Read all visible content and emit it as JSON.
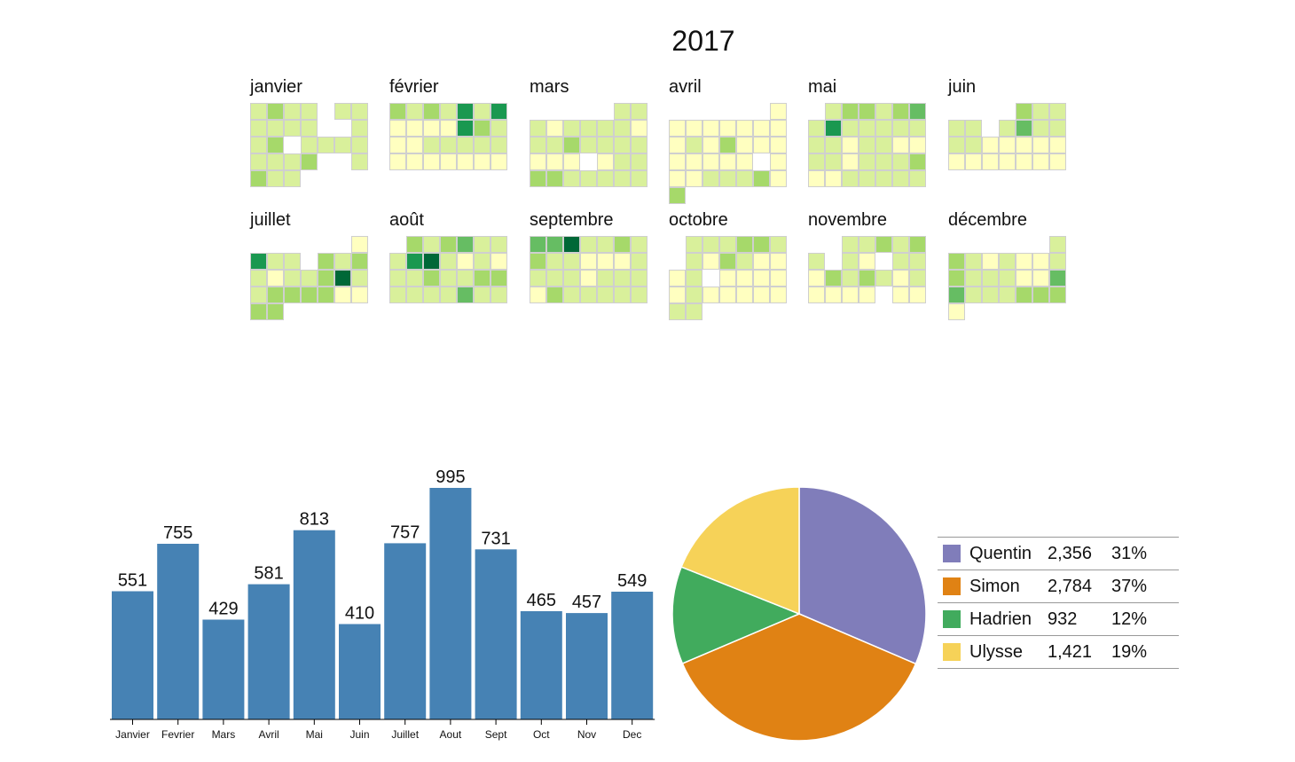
{
  "calendar": {
    "year": "2017",
    "months": [
      "janvier",
      "février",
      "mars",
      "avril",
      "mai",
      "juin",
      "juillet",
      "août",
      "septembre",
      "octobre",
      "novembre",
      "décembre"
    ],
    "palette": [
      "#ffffff",
      "#ffffc0",
      "#d9f09b",
      "#a6d96a",
      "#66bd63",
      "#1a9850",
      "#006837"
    ],
    "levels": [
      "2322022|2222002|2302222|2223002|3220000",
      "3232525|1111532|1122222|1111111",
      "0000022|2122221|2232222|1110122|3322222",
      "0000001|1111111|1213111|1111101|1122231|3000000",
      "0233234|2522222|2212211|2212223|1122222",
      "0000322|2202422|2211111|1111111",
      "0000001|5220323|2122362|2333311|3300000",
      "0323422|2562121|2232233|2222422",
      "4462232|3221112|2221222|1322222",
      "0222332|0213211|1201111|1211111|2200000",
      "0022323|2021022|1323212|1111011",
      "0000002|3212112|3222114|4222333|1000000"
    ]
  },
  "chart_data": [
    {
      "type": "bar",
      "categories": [
        "Janvier",
        "Fevrier",
        "Mars",
        "Avril",
        "Mai",
        "Juin",
        "Juillet",
        "Aout",
        "Sept",
        "Oct",
        "Nov",
        "Dec"
      ],
      "values": [
        551,
        755,
        429,
        581,
        813,
        410,
        757,
        995,
        731,
        465,
        457,
        549
      ],
      "color": "#4682b4",
      "ylim": [
        0,
        1100
      ]
    },
    {
      "type": "pie",
      "labels": [
        "Quentin",
        "Simon",
        "Hadrien",
        "Ulysse"
      ],
      "values": [
        2356,
        2784,
        932,
        1421
      ],
      "display_values": [
        "2,356",
        "2,784",
        "932",
        "1,421"
      ],
      "percents": [
        "31%",
        "37%",
        "12%",
        "19%"
      ],
      "colors": [
        "#807dba",
        "#e08214",
        "#41ab5d",
        "#f6d258"
      ]
    }
  ]
}
